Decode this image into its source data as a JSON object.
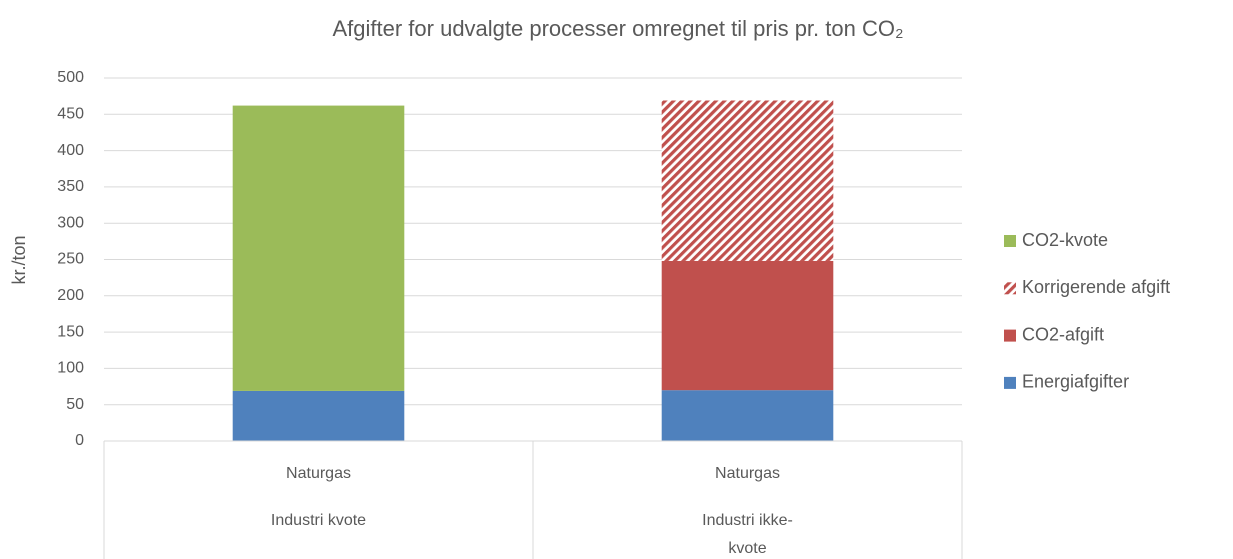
{
  "chart_data": {
    "type": "stacked_bar",
    "title": "Afgifter for udvalgte processer omregnet til pris pr. ton CO₂",
    "y_label": "kr./ton",
    "categories": [
      "Naturgas",
      "Naturgas"
    ],
    "groups": [
      "Industri kvote",
      "Industri ikke-kvote"
    ],
    "series": [
      {
        "name": "Energiafgifter",
        "color": "#4f81bd",
        "values": [
          69,
          70
        ]
      },
      {
        "name": "CO2-afgift",
        "color": "#c0504d",
        "values": [
          0,
          178
        ]
      },
      {
        "name": "Korrigerende afgift",
        "color": "#c0504d",
        "pattern": "diagonal",
        "values": [
          0,
          221
        ]
      },
      {
        "name": "CO2-kvote",
        "color": "#9bbb59",
        "values": [
          393,
          0
        ]
      }
    ],
    "ylim": [
      0,
      500
    ],
    "yticks": [
      0,
      50,
      100,
      150,
      200,
      250,
      300,
      350,
      400,
      450,
      500
    ],
    "grid": true,
    "legend": "right"
  }
}
